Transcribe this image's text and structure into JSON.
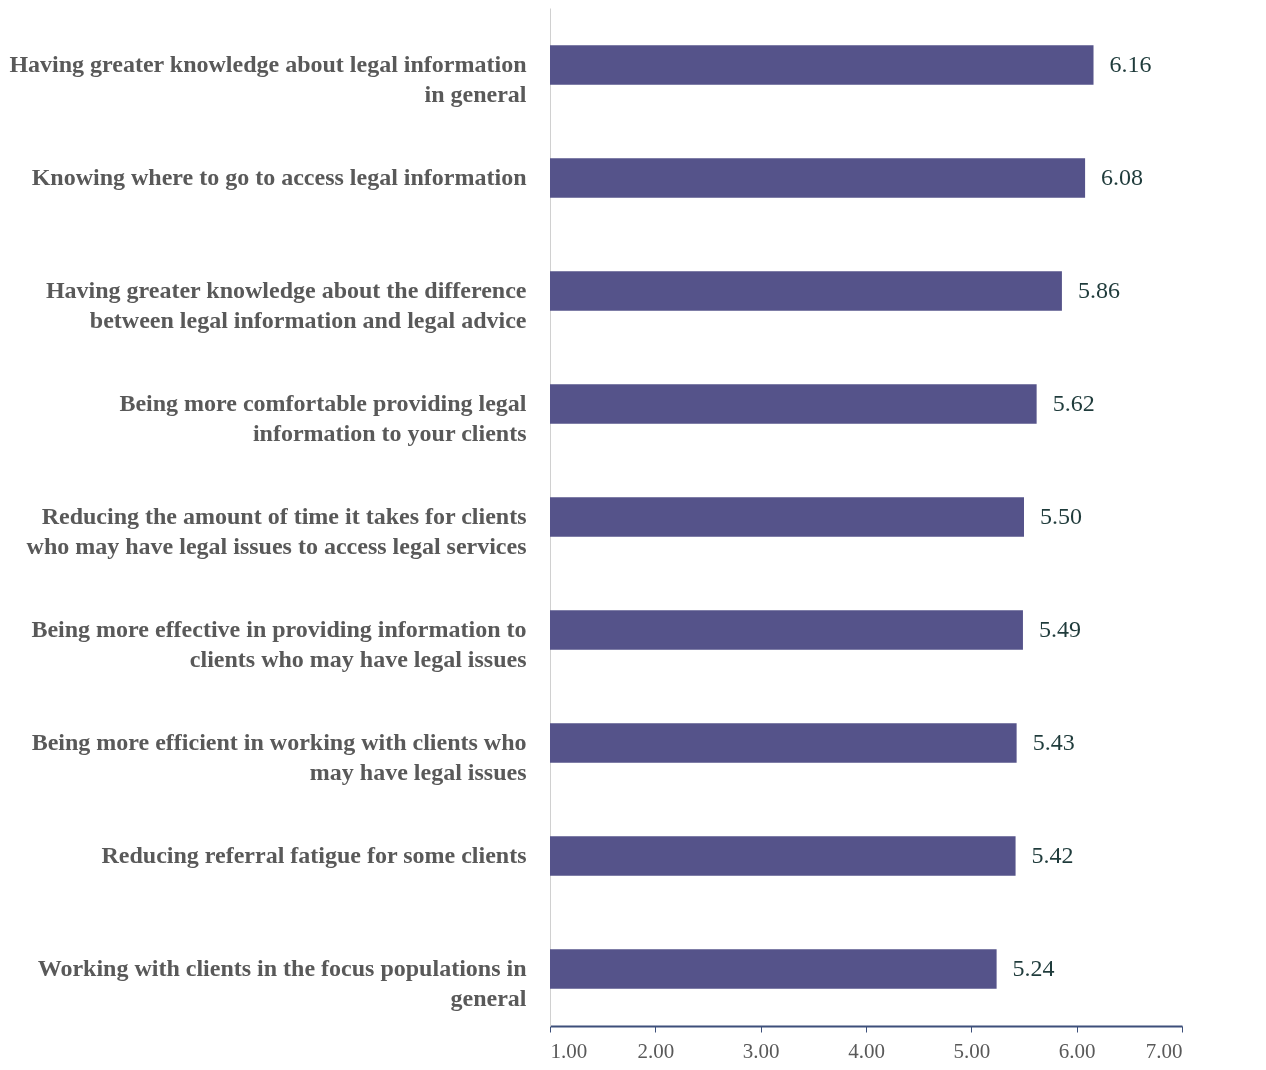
{
  "chart_data": {
    "type": "bar",
    "orientation": "horizontal",
    "categories": [
      "Having greater knowledge about legal information in general",
      "Knowing where to go to access legal information",
      "Having greater knowledge about the difference between legal information and legal advice",
      "Being more comfortable providing legal information to your clients",
      "Reducing the amount of time it takes for clients who may have legal issues to access legal services",
      "Being more effective in providing information to clients who may have legal issues",
      "Being more efficient in working with clients who may have legal issues",
      "Reducing referral fatigue for some clients",
      "Working with clients in the focus populations in general"
    ],
    "values": [
      6.16,
      6.08,
      5.86,
      5.62,
      5.5,
      5.49,
      5.43,
      5.42,
      5.24
    ],
    "value_labels": [
      "6.16",
      "6.08",
      "5.86",
      "5.62",
      "5.50",
      "5.49",
      "5.43",
      "5.42",
      "5.24"
    ],
    "color": "#55538a",
    "xlim": [
      1,
      7
    ],
    "xticks": [
      {
        "value": 1,
        "label": "1.00"
      },
      {
        "value": 2,
        "label": "2.00"
      },
      {
        "value": 3,
        "label": "3.00"
      },
      {
        "value": 4,
        "label": "4.00"
      },
      {
        "value": 5,
        "label": "5.00"
      },
      {
        "value": 6,
        "label": "6.00"
      },
      {
        "value": 7,
        "label": "7.00"
      }
    ],
    "grid": false
  }
}
